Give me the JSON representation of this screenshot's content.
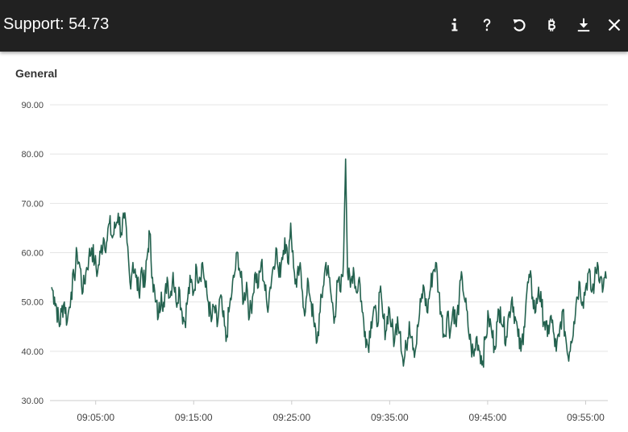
{
  "header": {
    "title": "Support: 54.73",
    "icons": [
      "info-icon",
      "help-icon",
      "reset-icon",
      "bitcoin-icon",
      "download-icon",
      "close-icon"
    ]
  },
  "panel": {
    "title": "General"
  },
  "colors": {
    "header_bg": "#212121",
    "series": "#24624f",
    "grid": "#e4e4e4"
  },
  "chart_data": {
    "type": "line",
    "title": "General",
    "xlabel": "",
    "ylabel": "",
    "ylim": [
      30,
      90
    ],
    "y_ticks": [
      "30.00",
      "40.00",
      "50.00",
      "60.00",
      "70.00",
      "80.00",
      "90.00"
    ],
    "x_ticks": [
      "09:05:00",
      "09:15:00",
      "09:25:00",
      "09:35:00",
      "09:45:00",
      "09:55:00"
    ],
    "x_start": "09:00:30",
    "x_end": "09:61:00",
    "grid": true,
    "legend": "none",
    "series": [
      {
        "values": [
          [
            0.0,
            53
          ],
          [
            0.3,
            51
          ],
          [
            0.5,
            49
          ],
          [
            0.8,
            45
          ],
          [
            1.0,
            48
          ],
          [
            1.3,
            50
          ],
          [
            1.6,
            46
          ],
          [
            2.0,
            52
          ],
          [
            2.3,
            55
          ],
          [
            2.6,
            60
          ],
          [
            2.9,
            57
          ],
          [
            3.2,
            52
          ],
          [
            3.5,
            56
          ],
          [
            3.8,
            59
          ],
          [
            4.1,
            61
          ],
          [
            4.4,
            58
          ],
          [
            4.7,
            56
          ],
          [
            5.0,
            60
          ],
          [
            5.3,
            63
          ],
          [
            5.6,
            62
          ],
          [
            5.9,
            66
          ],
          [
            6.2,
            63
          ],
          [
            6.5,
            65
          ],
          [
            6.8,
            68
          ],
          [
            7.1,
            64
          ],
          [
            7.4,
            67
          ],
          [
            7.7,
            62
          ],
          [
            8.0,
            54
          ],
          [
            8.3,
            58
          ],
          [
            8.6,
            55
          ],
          [
            8.9,
            52
          ],
          [
            9.2,
            57
          ],
          [
            9.5,
            53
          ],
          [
            9.8,
            60
          ],
          [
            10.0,
            64
          ],
          [
            10.3,
            55
          ],
          [
            10.6,
            50
          ],
          [
            10.9,
            47
          ],
          [
            11.2,
            52
          ],
          [
            11.5,
            49
          ],
          [
            11.8,
            55
          ],
          [
            12.1,
            51
          ],
          [
            12.4,
            56
          ],
          [
            12.7,
            50
          ],
          [
            13.0,
            53
          ],
          [
            13.3,
            48
          ],
          [
            13.6,
            46
          ],
          [
            13.9,
            51
          ],
          [
            14.2,
            54
          ],
          [
            14.5,
            52
          ],
          [
            14.8,
            57
          ],
          [
            15.1,
            55
          ],
          [
            15.4,
            58
          ],
          [
            15.7,
            53
          ],
          [
            16.0,
            50
          ],
          [
            16.3,
            46
          ],
          [
            16.6,
            49
          ],
          [
            16.9,
            45
          ],
          [
            17.2,
            51
          ],
          [
            17.5,
            47
          ],
          [
            17.8,
            42
          ],
          [
            18.1,
            48
          ],
          [
            18.4,
            52
          ],
          [
            18.7,
            56
          ],
          [
            19.0,
            60
          ],
          [
            19.3,
            55
          ],
          [
            19.6,
            50
          ],
          [
            19.9,
            54
          ],
          [
            20.2,
            47
          ],
          [
            20.5,
            51
          ],
          [
            20.8,
            56
          ],
          [
            21.1,
            53
          ],
          [
            21.4,
            58
          ],
          [
            21.7,
            54
          ],
          [
            22.0,
            49
          ],
          [
            22.3,
            53
          ],
          [
            22.6,
            57
          ],
          [
            22.9,
            61
          ],
          [
            23.2,
            55
          ],
          [
            23.5,
            59
          ],
          [
            23.8,
            63
          ],
          [
            24.1,
            58
          ],
          [
            24.4,
            66
          ],
          [
            24.7,
            57
          ],
          [
            25.0,
            53
          ],
          [
            25.3,
            57
          ],
          [
            25.6,
            52
          ],
          [
            25.9,
            48
          ],
          [
            26.2,
            54
          ],
          [
            26.5,
            50
          ],
          [
            26.8,
            45
          ],
          [
            27.1,
            42
          ],
          [
            27.4,
            48
          ],
          [
            27.7,
            53
          ],
          [
            28.0,
            58
          ],
          [
            28.3,
            55
          ],
          [
            28.6,
            50
          ],
          [
            28.9,
            47
          ],
          [
            29.2,
            54
          ],
          [
            29.5,
            52
          ],
          [
            29.8,
            59
          ],
          [
            30.0,
            79
          ],
          [
            30.2,
            56
          ],
          [
            30.5,
            53
          ],
          [
            30.8,
            57
          ],
          [
            31.1,
            52
          ],
          [
            31.4,
            55
          ],
          [
            31.7,
            48
          ],
          [
            32.0,
            44
          ],
          [
            32.3,
            41
          ],
          [
            32.6,
            46
          ],
          [
            32.9,
            49
          ],
          [
            33.2,
            45
          ],
          [
            33.5,
            52
          ],
          [
            33.8,
            47
          ],
          [
            34.1,
            44
          ],
          [
            34.4,
            49
          ],
          [
            34.7,
            45
          ],
          [
            35.0,
            42
          ],
          [
            35.3,
            47
          ],
          [
            35.6,
            44
          ],
          [
            35.9,
            37
          ],
          [
            36.2,
            41
          ],
          [
            36.5,
            46
          ],
          [
            36.8,
            43
          ],
          [
            37.1,
            40
          ],
          [
            37.4,
            45
          ],
          [
            37.7,
            50
          ],
          [
            38.0,
            53
          ],
          [
            38.3,
            48
          ],
          [
            38.6,
            52
          ],
          [
            38.9,
            56
          ],
          [
            39.2,
            58
          ],
          [
            39.5,
            52
          ],
          [
            39.8,
            47
          ],
          [
            40.1,
            43
          ],
          [
            40.4,
            48
          ],
          [
            40.7,
            44
          ],
          [
            41.0,
            49
          ],
          [
            41.3,
            45
          ],
          [
            41.6,
            51
          ],
          [
            41.9,
            55
          ],
          [
            42.2,
            50
          ],
          [
            42.5,
            45
          ],
          [
            42.8,
            41
          ],
          [
            43.1,
            39
          ],
          [
            43.4,
            43
          ],
          [
            43.7,
            40
          ],
          [
            44.0,
            38
          ],
          [
            44.3,
            43
          ],
          [
            44.6,
            47
          ],
          [
            44.9,
            44
          ],
          [
            45.2,
            41
          ],
          [
            45.5,
            46
          ],
          [
            45.8,
            49
          ],
          [
            46.1,
            45
          ],
          [
            46.4,
            43
          ],
          [
            46.7,
            48
          ],
          [
            47.0,
            51
          ],
          [
            47.3,
            47
          ],
          [
            47.6,
            43
          ],
          [
            47.9,
            40
          ],
          [
            48.2,
            45
          ],
          [
            48.5,
            52
          ],
          [
            48.8,
            55
          ],
          [
            49.1,
            51
          ],
          [
            49.4,
            48
          ],
          [
            49.7,
            53
          ],
          [
            50.0,
            49
          ],
          [
            50.3,
            46
          ],
          [
            50.6,
            43
          ],
          [
            50.9,
            47
          ],
          [
            51.2,
            44
          ],
          [
            51.5,
            40
          ],
          [
            51.8,
            43
          ],
          [
            52.1,
            48
          ],
          [
            52.4,
            44
          ],
          [
            52.7,
            39
          ],
          [
            53.0,
            42
          ],
          [
            53.3,
            46
          ],
          [
            53.6,
            51
          ],
          [
            53.9,
            54
          ],
          [
            54.2,
            50
          ],
          [
            54.5,
            53
          ],
          [
            54.8,
            56
          ],
          [
            55.1,
            52
          ],
          [
            55.4,
            54
          ],
          [
            55.7,
            58
          ],
          [
            56.0,
            55
          ],
          [
            56.3,
            53
          ],
          [
            56.6,
            54.73
          ]
        ]
      }
    ]
  }
}
